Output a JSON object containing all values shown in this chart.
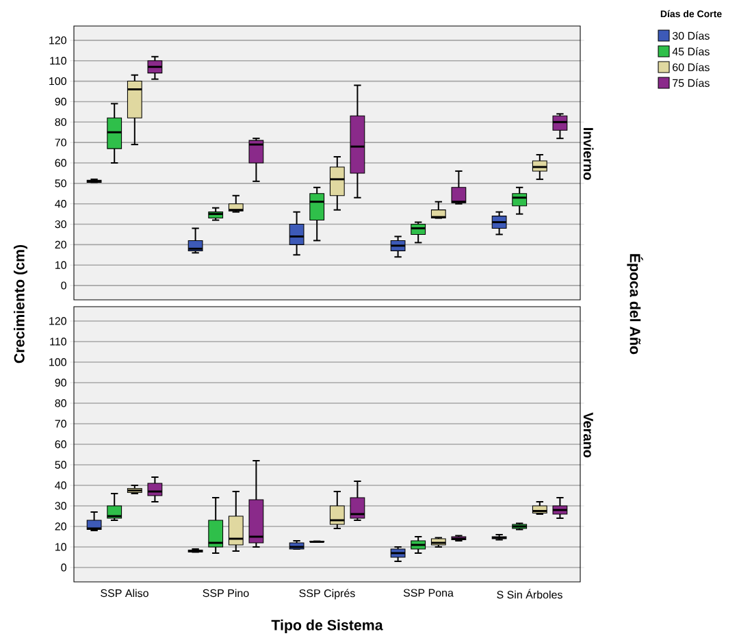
{
  "chart_data": [
    {
      "type": "box",
      "title": "Invierno",
      "ylabel": "Crecimiento (cm)",
      "y2label": "Época del Año",
      "legend_title": "Días de Corte",
      "legend": "top right",
      "grid": "y",
      "tick_labels": "y",
      "categories": [
        null,
        null,
        null,
        null,
        null
      ],
      "ylim": [
        -7,
        127
      ],
      "yticks": [
        0,
        10,
        20,
        30,
        40,
        50,
        60,
        70,
        80,
        90,
        100,
        110,
        120
      ],
      "series": [
        {
          "name": "30 Días",
          "color": "#3d5ab8",
          "boxes": [
            {
              "low": 50.5,
              "q1": 50.5,
              "median": 51,
              "q3": 51.5,
              "high": 52
            },
            {
              "low": 16,
              "q1": 17,
              "median": 18,
              "q3": 22,
              "high": 28
            },
            {
              "low": 15,
              "q1": 20,
              "median": 24,
              "q3": 30,
              "high": 36
            },
            {
              "low": 14,
              "q1": 17,
              "median": 19.5,
              "q3": 22,
              "high": 24
            },
            {
              "low": 25,
              "q1": 28,
              "median": 31,
              "q3": 34,
              "high": 36
            }
          ]
        },
        {
          "name": "45 Días",
          "color": "#2fbf4a",
          "boxes": [
            {
              "low": 60,
              "q1": 67,
              "median": 75,
              "q3": 82,
              "high": 89
            },
            {
              "low": 32,
              "q1": 33,
              "median": 35,
              "q3": 36,
              "high": 38
            },
            {
              "low": 22,
              "q1": 32,
              "median": 41,
              "q3": 45,
              "high": 48
            },
            {
              "low": 21,
              "q1": 25,
              "median": 28,
              "q3": 30,
              "high": 31
            },
            {
              "low": 35,
              "q1": 39,
              "median": 43,
              "q3": 45,
              "high": 48
            }
          ]
        },
        {
          "name": "60 Días",
          "color": "#e0d8a0",
          "boxes": [
            {
              "low": 69,
              "q1": 82,
              "median": 96,
              "q3": 100,
              "high": 103
            },
            {
              "low": 36,
              "q1": 36.5,
              "median": 37,
              "q3": 40,
              "high": 44
            },
            {
              "low": 37,
              "q1": 44,
              "median": 52,
              "q3": 58,
              "high": 63
            },
            {
              "low": 33,
              "q1": 33,
              "median": 33.5,
              "q3": 37,
              "high": 41
            },
            {
              "low": 52,
              "q1": 56,
              "median": 58,
              "q3": 61,
              "high": 64
            }
          ]
        },
        {
          "name": "75 Días",
          "color": "#8a2a8a",
          "boxes": [
            {
              "low": 101,
              "q1": 104,
              "median": 107,
              "q3": 110,
              "high": 112
            },
            {
              "low": 51,
              "q1": 60,
              "median": 69,
              "q3": 71,
              "high": 72
            },
            {
              "low": 43,
              "q1": 55,
              "median": 68,
              "q3": 83,
              "high": 98
            },
            {
              "low": 40,
              "q1": 40.5,
              "median": 41,
              "q3": 48,
              "high": 56
            },
            {
              "low": 72,
              "q1": 76,
              "median": 80,
              "q3": 83,
              "high": 84
            }
          ]
        }
      ]
    },
    {
      "type": "box",
      "title": "Verano",
      "xlabel": "Tipo de Sistema",
      "grid": "y",
      "categories": [
        "SSP Aliso",
        "SSP Pino",
        "SSP Ciprés",
        "SSP Pona",
        "S Sin Árboles"
      ],
      "ylim": [
        -7,
        127
      ],
      "yticks": [
        0,
        10,
        20,
        30,
        40,
        50,
        60,
        70,
        80,
        90,
        100,
        110,
        120
      ],
      "series": [
        {
          "color": "#3d5ab8",
          "boxes": [
            {
              "low": 18,
              "q1": 18.5,
              "median": 19,
              "q3": 23,
              "high": 27
            },
            {
              "low": 7.5,
              "q1": 7.5,
              "median": 8,
              "q3": 8.5,
              "high": 9
            },
            {
              "low": 9,
              "q1": 9,
              "median": 10,
              "q3": 12,
              "high": 13
            },
            {
              "low": 3,
              "q1": 5,
              "median": 7,
              "q3": 9,
              "high": 10
            },
            {
              "low": 13.5,
              "q1": 14,
              "median": 14.5,
              "q3": 15,
              "high": 16
            }
          ]
        },
        {
          "color": "#2fbf4a",
          "boxes": [
            {
              "low": 23,
              "q1": 24,
              "median": 25,
              "q3": 30,
              "high": 36
            },
            {
              "low": 7,
              "q1": 10,
              "median": 12,
              "q3": 23,
              "high": 34
            },
            {
              "low": 12.5,
              "q1": 12.5,
              "median": 12.5,
              "q3": 12.8,
              "high": 12.8
            },
            {
              "low": 7,
              "q1": 9,
              "median": 11,
              "q3": 13,
              "high": 15
            },
            {
              "low": 18.5,
              "q1": 19,
              "median": 20,
              "q3": 21,
              "high": 21.5
            }
          ]
        },
        {
          "color": "#e0d8a0",
          "boxes": [
            {
              "low": 36,
              "q1": 36.5,
              "median": 37.5,
              "q3": 38.5,
              "high": 40
            },
            {
              "low": 8,
              "q1": 11,
              "median": 14,
              "q3": 25,
              "high": 37
            },
            {
              "low": 19,
              "q1": 21,
              "median": 23,
              "q3": 30,
              "high": 37
            },
            {
              "low": 10,
              "q1": 11,
              "median": 12,
              "q3": 14,
              "high": 14.5
            },
            {
              "low": 26,
              "q1": 26.5,
              "median": 27.5,
              "q3": 30,
              "high": 32
            }
          ]
        },
        {
          "color": "#8a2a8a",
          "boxes": [
            {
              "low": 32,
              "q1": 35,
              "median": 37,
              "q3": 41,
              "high": 44
            },
            {
              "low": 10,
              "q1": 12,
              "median": 15,
              "q3": 33,
              "high": 52
            },
            {
              "low": 23,
              "q1": 24,
              "median": 26,
              "q3": 34,
              "high": 42
            },
            {
              "low": 13,
              "q1": 13.5,
              "median": 14,
              "q3": 15,
              "high": 15.5
            },
            {
              "low": 24,
              "q1": 26,
              "median": 28,
              "q3": 30,
              "high": 34
            }
          ]
        }
      ]
    }
  ]
}
